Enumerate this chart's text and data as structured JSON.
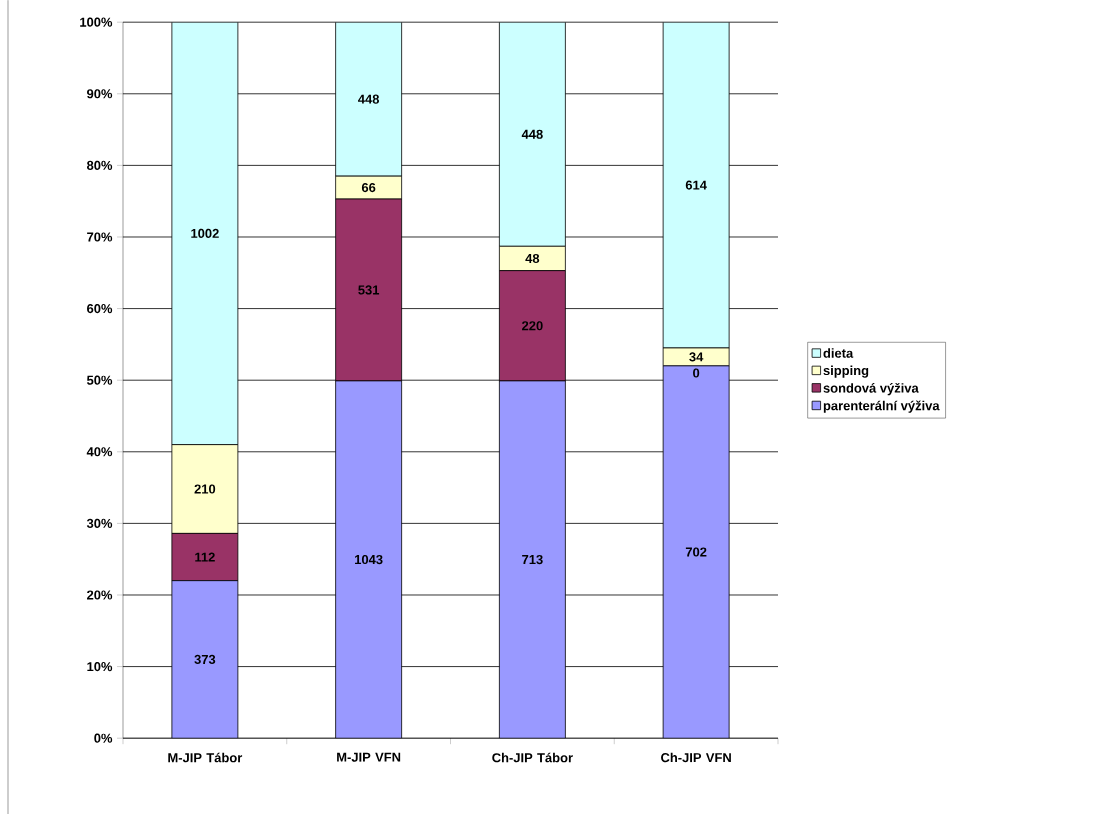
{
  "chart_data": {
    "type": "bar",
    "stacked": true,
    "categories": [
      "M-JIP Tábor",
      "M-JIP VFN",
      "Ch-JIP Tábor",
      "Ch-JIP VFN"
    ],
    "series": [
      {
        "name": "parenterální výživa",
        "color": "#9999ff",
        "values": [
          22.0,
          49.9,
          49.9,
          52.0
        ]
      },
      {
        "name": "sondová výživa",
        "color": "#993366",
        "values": [
          6.6,
          25.4,
          15.4,
          0
        ]
      },
      {
        "name": "sipping",
        "color": "#ffffcc",
        "values": [
          12.4,
          3.2,
          3.4,
          2.5
        ]
      },
      {
        "name": "dieta",
        "color": "#ccffff",
        "values": [
          59.0,
          21.5,
          31.3,
          45.5
        ]
      }
    ],
    "annotations": [
      "373",
      "112",
      "210",
      "1002",
      "1043",
      "531",
      "66",
      "448",
      "713",
      "220",
      "48",
      "448",
      "702",
      "0",
      "34",
      "614"
    ],
    "ylim": [
      0,
      100
    ],
    "yticks": [
      {
        "value": 0,
        "label": "0%"
      },
      {
        "value": 10,
        "label": "10%"
      },
      {
        "value": 20,
        "label": "20%"
      },
      {
        "value": 30,
        "label": "30%"
      },
      {
        "value": 40,
        "label": "40%"
      },
      {
        "value": 50,
        "label": "50%"
      },
      {
        "value": 60,
        "label": "60%"
      },
      {
        "value": 70,
        "label": "70%"
      },
      {
        "value": 80,
        "label": "80%"
      },
      {
        "value": 90,
        "label": "90%"
      },
      {
        "value": 100,
        "label": "100%"
      }
    ],
    "grid": "y",
    "legend": "right"
  }
}
